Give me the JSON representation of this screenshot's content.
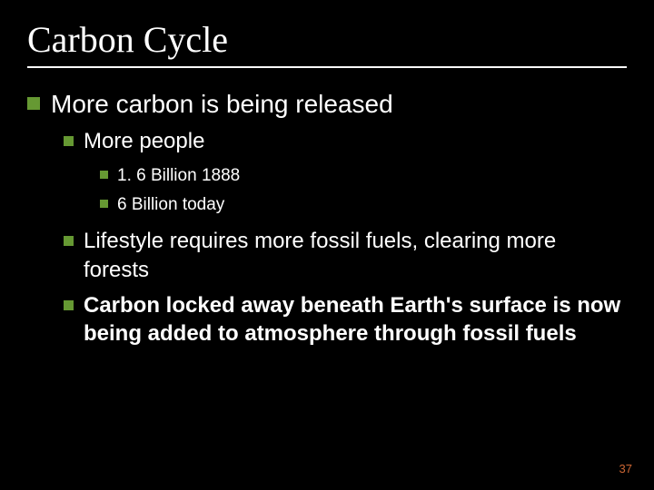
{
  "colors": {
    "background": "#000000",
    "text": "#ffffff",
    "bullet": "#669933",
    "page_number": "#cc6633",
    "underline": "#ffffff"
  },
  "title": "Carbon Cycle",
  "page_number": "37",
  "bullets": {
    "l1_a": "More carbon is being released",
    "l2_a": "More people",
    "l3_a": "1. 6 Billion 1888",
    "l3_b": "6 Billion today",
    "l2_b": "Lifestyle requires more fossil fuels, clearing more forests",
    "l2_c": "Carbon locked away beneath Earth's surface is now being added to atmosphere through fossil fuels"
  },
  "fonts": {
    "title_family": "Times New Roman",
    "body_family": "Arial",
    "title_size_pt": 40,
    "l1_size_pt": 28,
    "l2_size_pt": 24,
    "l3_size_pt": 19
  }
}
